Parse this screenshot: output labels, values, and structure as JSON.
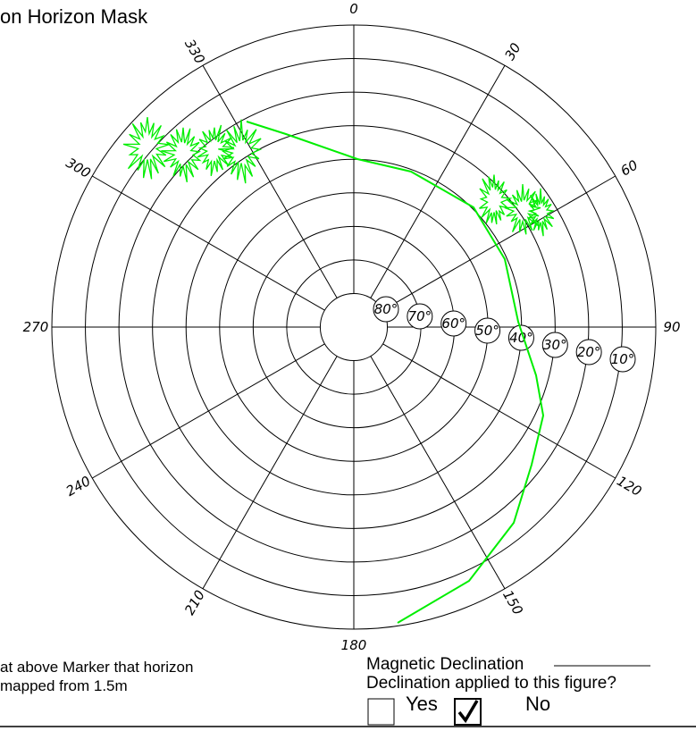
{
  "title": "on Horizon Mask",
  "azimuth_labels": [
    0,
    30,
    60,
    90,
    120,
    150,
    180,
    210,
    240,
    270,
    300,
    330
  ],
  "elevation_labels": [
    "80°",
    "70°",
    "60°",
    "50°",
    "40°",
    "30°",
    "20°",
    "10°"
  ],
  "note": {
    "line1": "at above Marker that horizon",
    "line2": "mapped from 1.5m"
  },
  "declination": {
    "label": "Magnetic Declination",
    "question": "Declination applied to this figure?",
    "yes": "Yes",
    "no": "No"
  }
}
